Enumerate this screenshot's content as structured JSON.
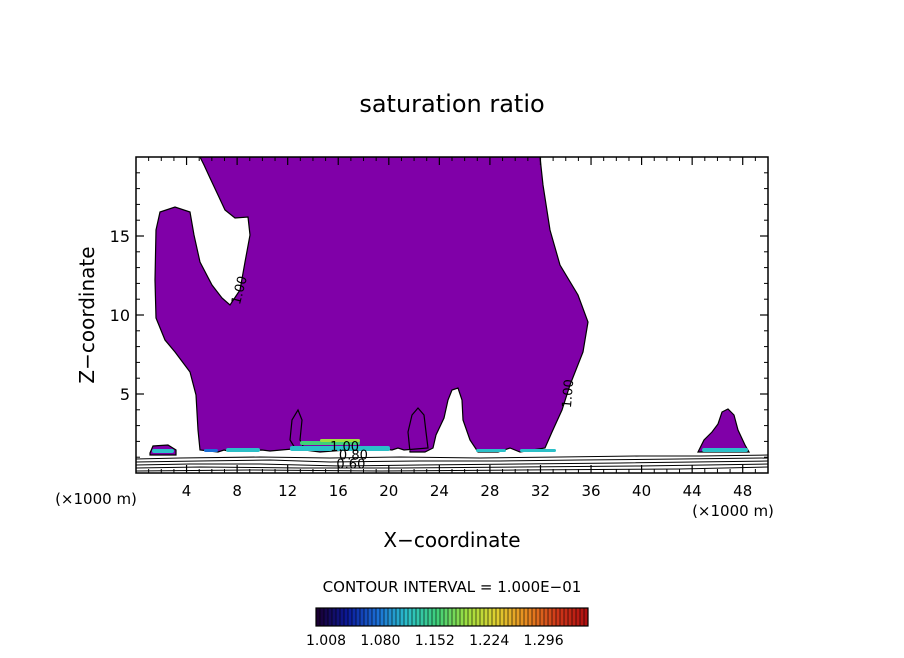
{
  "chart_data": {
    "type": "contour",
    "title": "saturation ratio",
    "xlabel": "X−coordinate",
    "ylabel": "Z−coordinate",
    "x_unit_left": "(×1000 m)",
    "x_unit_right": "(×1000 m)",
    "xlim": [
      0,
      50
    ],
    "ylim": [
      0,
      20
    ],
    "x_ticks": [
      4,
      8,
      12,
      16,
      20,
      24,
      28,
      32,
      36,
      40,
      44,
      48
    ],
    "y_ticks": [
      5,
      10,
      15
    ],
    "contour_interval_text": "CONTOUR INTERVAL = 1.000E−01",
    "contour_labels": [
      {
        "text": "1.00",
        "x": 8.5,
        "y": 11.5,
        "angle": -75
      },
      {
        "text": "1.00",
        "x": 34.5,
        "y": 5.0,
        "angle": -85
      },
      {
        "text": "1.00",
        "x": 16.5,
        "y": 1.4,
        "angle": 0
      },
      {
        "text": "0.80",
        "x": 17.2,
        "y": 0.85,
        "angle": 0
      },
      {
        "text": "0.60",
        "x": 17.0,
        "y": 0.3,
        "angle": 0
      }
    ],
    "colorbar": {
      "labels": [
        "1.008",
        "1.080",
        "1.152",
        "1.224",
        "1.296"
      ],
      "colors": [
        "#1a0033",
        "#0b1a9a",
        "#1b6fd6",
        "#2bc0c8",
        "#3fd07a",
        "#9fe040",
        "#e0d030",
        "#e88a20",
        "#d03a1a",
        "#b01010"
      ]
    },
    "fill_color": "#8000a8"
  }
}
